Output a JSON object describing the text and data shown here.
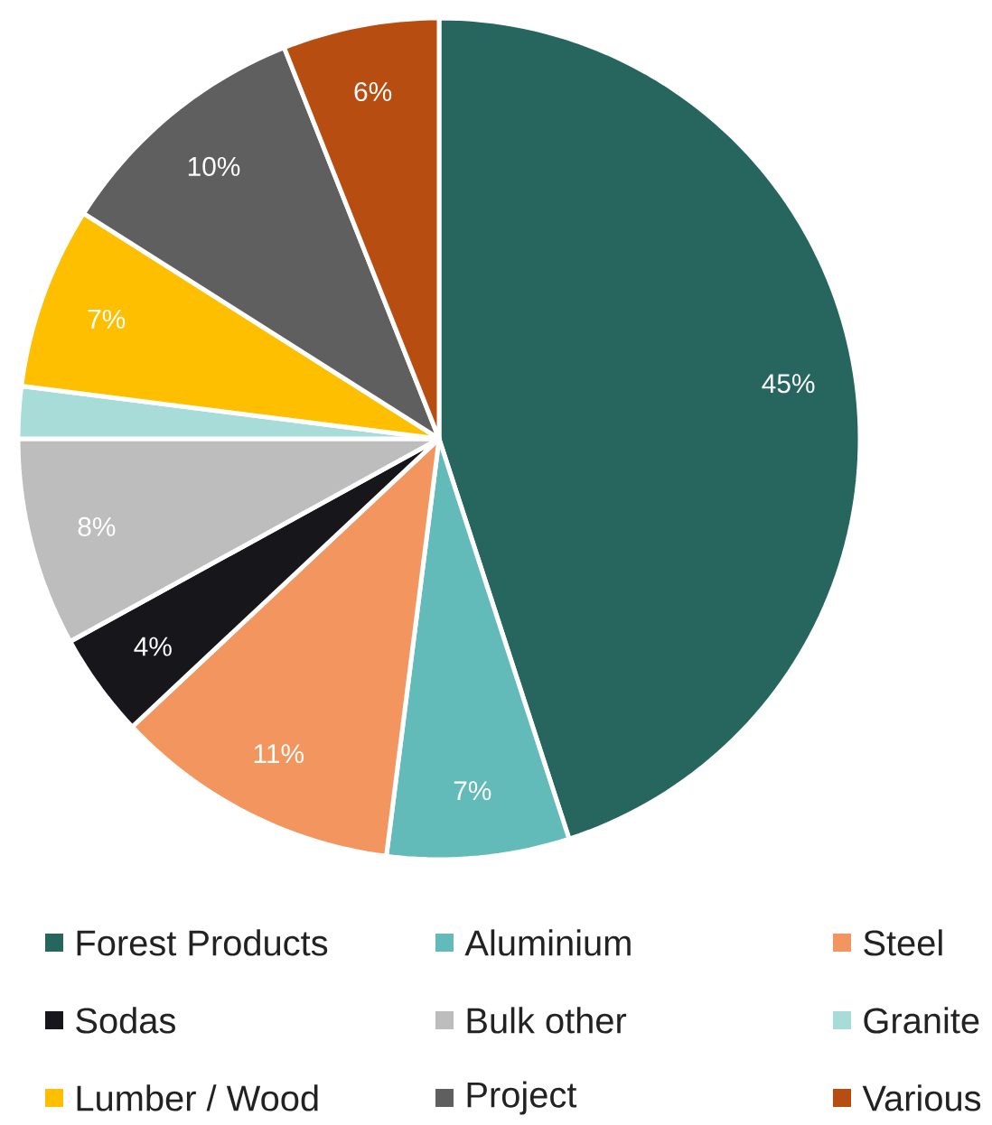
{
  "chart_data": {
    "type": "pie",
    "categories": [
      "Forest Products",
      "Aluminium",
      "Steel",
      "Sodas",
      "Bulk other",
      "Granite",
      "Lumber / Wood",
      "Project",
      "Various"
    ],
    "values": [
      45,
      7,
      11,
      4,
      8,
      2,
      7,
      10,
      6
    ],
    "colors": [
      "#26665f",
      "#62bbb9",
      "#f2955e",
      "#17161a",
      "#bdbdbd",
      "#a8dcd9",
      "#fdbf00",
      "#5f5f5f",
      "#b84d12"
    ],
    "value_labels": [
      "45%",
      "7%",
      "11%",
      "4%",
      "8%",
      null,
      "7%",
      "10%",
      "6%"
    ],
    "legend": "bottom"
  }
}
